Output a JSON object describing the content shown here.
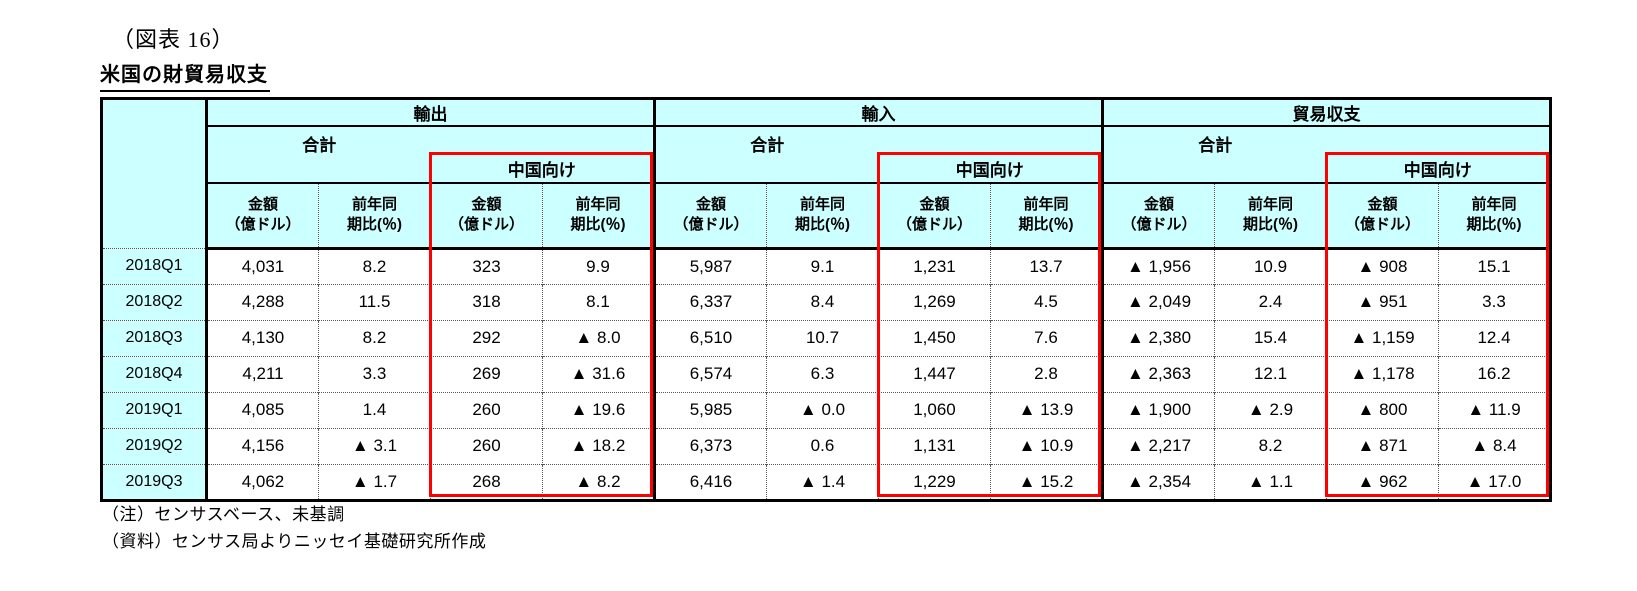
{
  "figure_label": "（図表 16）",
  "title": "米国の財貿易収支",
  "table": {
    "groups": [
      {
        "label": "輸出"
      },
      {
        "label": "輸入"
      },
      {
        "label": "貿易収支"
      }
    ],
    "total_label": "合計",
    "china_label": "中国向け",
    "amount_header": {
      "line1": "金額",
      "line2": "（億ドル）"
    },
    "yoy_header": {
      "line1": "前年同",
      "line2": "期比(％)"
    },
    "rows": [
      {
        "period": "2018Q1",
        "values": [
          "4,031",
          "8.2",
          "323",
          "9.9",
          "5,987",
          "9.1",
          "1,231",
          "13.7",
          "▲ 1,956",
          "10.9",
          "▲ 908",
          "15.1"
        ]
      },
      {
        "period": "2018Q2",
        "values": [
          "4,288",
          "11.5",
          "318",
          "8.1",
          "6,337",
          "8.4",
          "1,269",
          "4.5",
          "▲ 2,049",
          "2.4",
          "▲ 951",
          "3.3"
        ]
      },
      {
        "period": "2018Q3",
        "values": [
          "4,130",
          "8.2",
          "292",
          "▲ 8.0",
          "6,510",
          "10.7",
          "1,450",
          "7.6",
          "▲ 2,380",
          "15.4",
          "▲ 1,159",
          "12.4"
        ]
      },
      {
        "period": "2018Q4",
        "values": [
          "4,211",
          "3.3",
          "269",
          "▲ 31.6",
          "6,574",
          "6.3",
          "1,447",
          "2.8",
          "▲ 2,363",
          "12.1",
          "▲ 1,178",
          "16.2"
        ]
      },
      {
        "period": "2019Q1",
        "values": [
          "4,085",
          "1.4",
          "260",
          "▲ 19.6",
          "5,985",
          "▲ 0.0",
          "1,060",
          "▲ 13.9",
          "▲ 1,900",
          "▲ 2.9",
          "▲ 800",
          "▲ 11.9"
        ]
      },
      {
        "period": "2019Q2",
        "values": [
          "4,156",
          "▲ 3.1",
          "260",
          "▲ 18.2",
          "6,373",
          "0.6",
          "1,131",
          "▲ 10.9",
          "▲ 2,217",
          "8.2",
          "▲ 871",
          "▲ 8.4"
        ]
      },
      {
        "period": "2019Q3",
        "values": [
          "4,062",
          "▲ 1.7",
          "268",
          "▲ 8.2",
          "6,416",
          "▲ 1.4",
          "1,229",
          "▲ 15.2",
          "▲ 2,354",
          "▲ 1.1",
          "▲ 962",
          "▲ 17.0"
        ]
      }
    ]
  },
  "notes": [
    "（注）センサスベース、未基調",
    "（資料）センサス局よりニッセイ基礎研究所作成"
  ],
  "colors": {
    "header_bg": "#CCFFFF",
    "highlight_border": "#FF0000",
    "grid_line": "#000000"
  }
}
